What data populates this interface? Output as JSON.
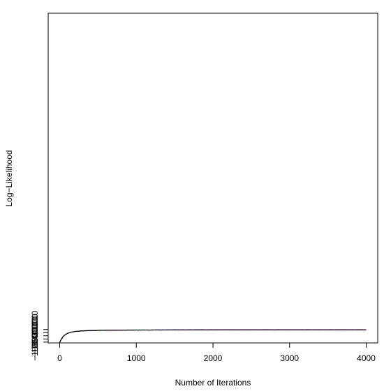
{
  "chart_data": {
    "type": "line",
    "title": "",
    "xlabel": "Number of Iterations",
    "ylabel": "Log−Likelihood",
    "xlim": [
      -150,
      4150
    ],
    "ylim": [
      -1085000,
      998000
    ],
    "x_ticks": [
      0,
      1000,
      2000,
      3000,
      4000
    ],
    "x_tick_labels": [
      "0",
      "1000",
      "2000",
      "3000",
      "4000"
    ],
    "y_ticks": [
      -1080000,
      -1060000,
      -1040000,
      -1020000,
      -1000000
    ],
    "y_tick_labels": [
      "−1080000",
      "−1060000",
      "−1040000",
      "−1020000",
      "−1000000"
    ],
    "grid": false,
    "legend": "none",
    "series": [
      {
        "color": "#d4c000",
        "x": [
          0,
          20,
          50,
          100,
          150,
          200,
          300,
          400,
          600,
          800,
          1000,
          1500,
          2000,
          2500,
          3000,
          3500,
          4000
        ],
        "y": [
          -1083000,
          -1065000,
          -1042000,
          -1026000,
          -1018000,
          -1013500,
          -1009500,
          -1007300,
          -1005300,
          -1004300,
          -1003800,
          -1003000,
          -1002500,
          -1002300,
          -1002200,
          -1002300,
          -1002200
        ]
      },
      {
        "color": "#22cc22",
        "x": [
          0,
          20,
          50,
          100,
          150,
          200,
          300,
          400,
          600,
          800,
          1000,
          1500,
          2000,
          2500,
          3000,
          3500,
          4000
        ],
        "y": [
          -1081000,
          -1062000,
          -1040000,
          -1024500,
          -1016500,
          -1012000,
          -1007800,
          -1006000,
          -1004300,
          -1003700,
          -1003300,
          -1002700,
          -1002300,
          -1002100,
          -1001900,
          -1001700,
          -1001500
        ]
      },
      {
        "color": "#00bcd4",
        "x": [
          0,
          20,
          50,
          100,
          150,
          200,
          300,
          400,
          600,
          800,
          1000,
          1500,
          2000,
          2500,
          3000,
          3500,
          4000
        ],
        "y": [
          -1080500,
          -1061500,
          -1040500,
          -1024800,
          -1016800,
          -1012300,
          -1008200,
          -1006300,
          -1004700,
          -1003900,
          -1003400,
          -1002800,
          -1002400,
          -1002200,
          -1002000,
          -1001900,
          -1001800
        ]
      },
      {
        "color": "#1515d0",
        "x": [
          0,
          20,
          50,
          100,
          150,
          200,
          300,
          400,
          600,
          800,
          1000,
          1500,
          2000,
          2500,
          3000,
          3500,
          4000
        ],
        "y": [
          -1081500,
          -1062500,
          -1041000,
          -1025000,
          -1017000,
          -1012500,
          -1008500,
          -1006500,
          -1004800,
          -1004000,
          -1003500,
          -1002900,
          -1002400,
          -1002200,
          -1002000,
          -1001900,
          -1001900
        ]
      },
      {
        "color": "#e0198f",
        "x": [
          0,
          20,
          50,
          100,
          150,
          200,
          300,
          400,
          600,
          800,
          1000,
          1500,
          2000,
          2500,
          3000,
          3500,
          4000
        ],
        "y": [
          -1082000,
          -1063500,
          -1041800,
          -1025500,
          -1017500,
          -1013000,
          -1008800,
          -1006800,
          -1005000,
          -1004100,
          -1003600,
          -1003000,
          -1002600,
          -1002400,
          -1002200,
          -1002100,
          -1002000
        ]
      },
      {
        "color": "#000000",
        "x": [
          0,
          20,
          50,
          100,
          150,
          200,
          300,
          400,
          600,
          800,
          1000,
          1500,
          2000,
          2500,
          3000,
          3500,
          4000
        ],
        "y": [
          -1081800,
          -1063000,
          -1041500,
          -1025300,
          -1017400,
          -1013000,
          -1009000,
          -1007000,
          -1005200,
          -1004300,
          -1003800,
          -1003100,
          -1002600,
          -1002400,
          -1002200,
          -1002100,
          -1002200
        ]
      }
    ]
  }
}
